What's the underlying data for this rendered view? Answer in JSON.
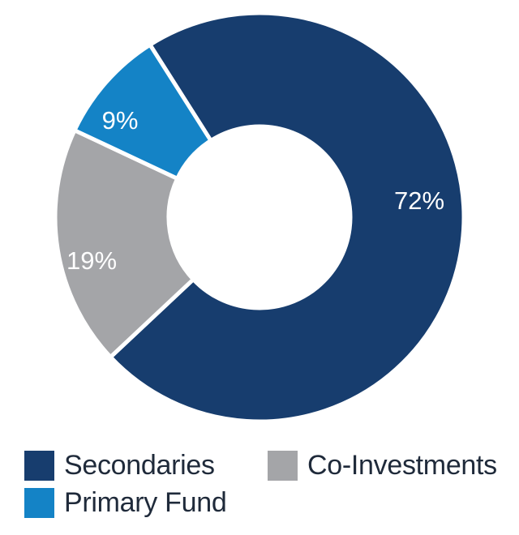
{
  "chart_data": {
    "type": "pie",
    "title": "",
    "categories": [
      "Secondaries",
      "Co-Investments",
      "Primary Fund"
    ],
    "values": [
      72,
      19,
      9
    ],
    "value_labels": [
      "72%",
      "19%",
      "9%"
    ],
    "colors": [
      "#173d6e",
      "#a4a5a8",
      "#1483c6"
    ],
    "donut": true,
    "legend_position": "bottom"
  },
  "legend": {
    "items": [
      {
        "label": "Secondaries",
        "color": "#173d6e"
      },
      {
        "label": "Co-Investments",
        "color": "#a4a5a8"
      },
      {
        "label": "Primary Fund",
        "color": "#1483c6"
      }
    ]
  }
}
